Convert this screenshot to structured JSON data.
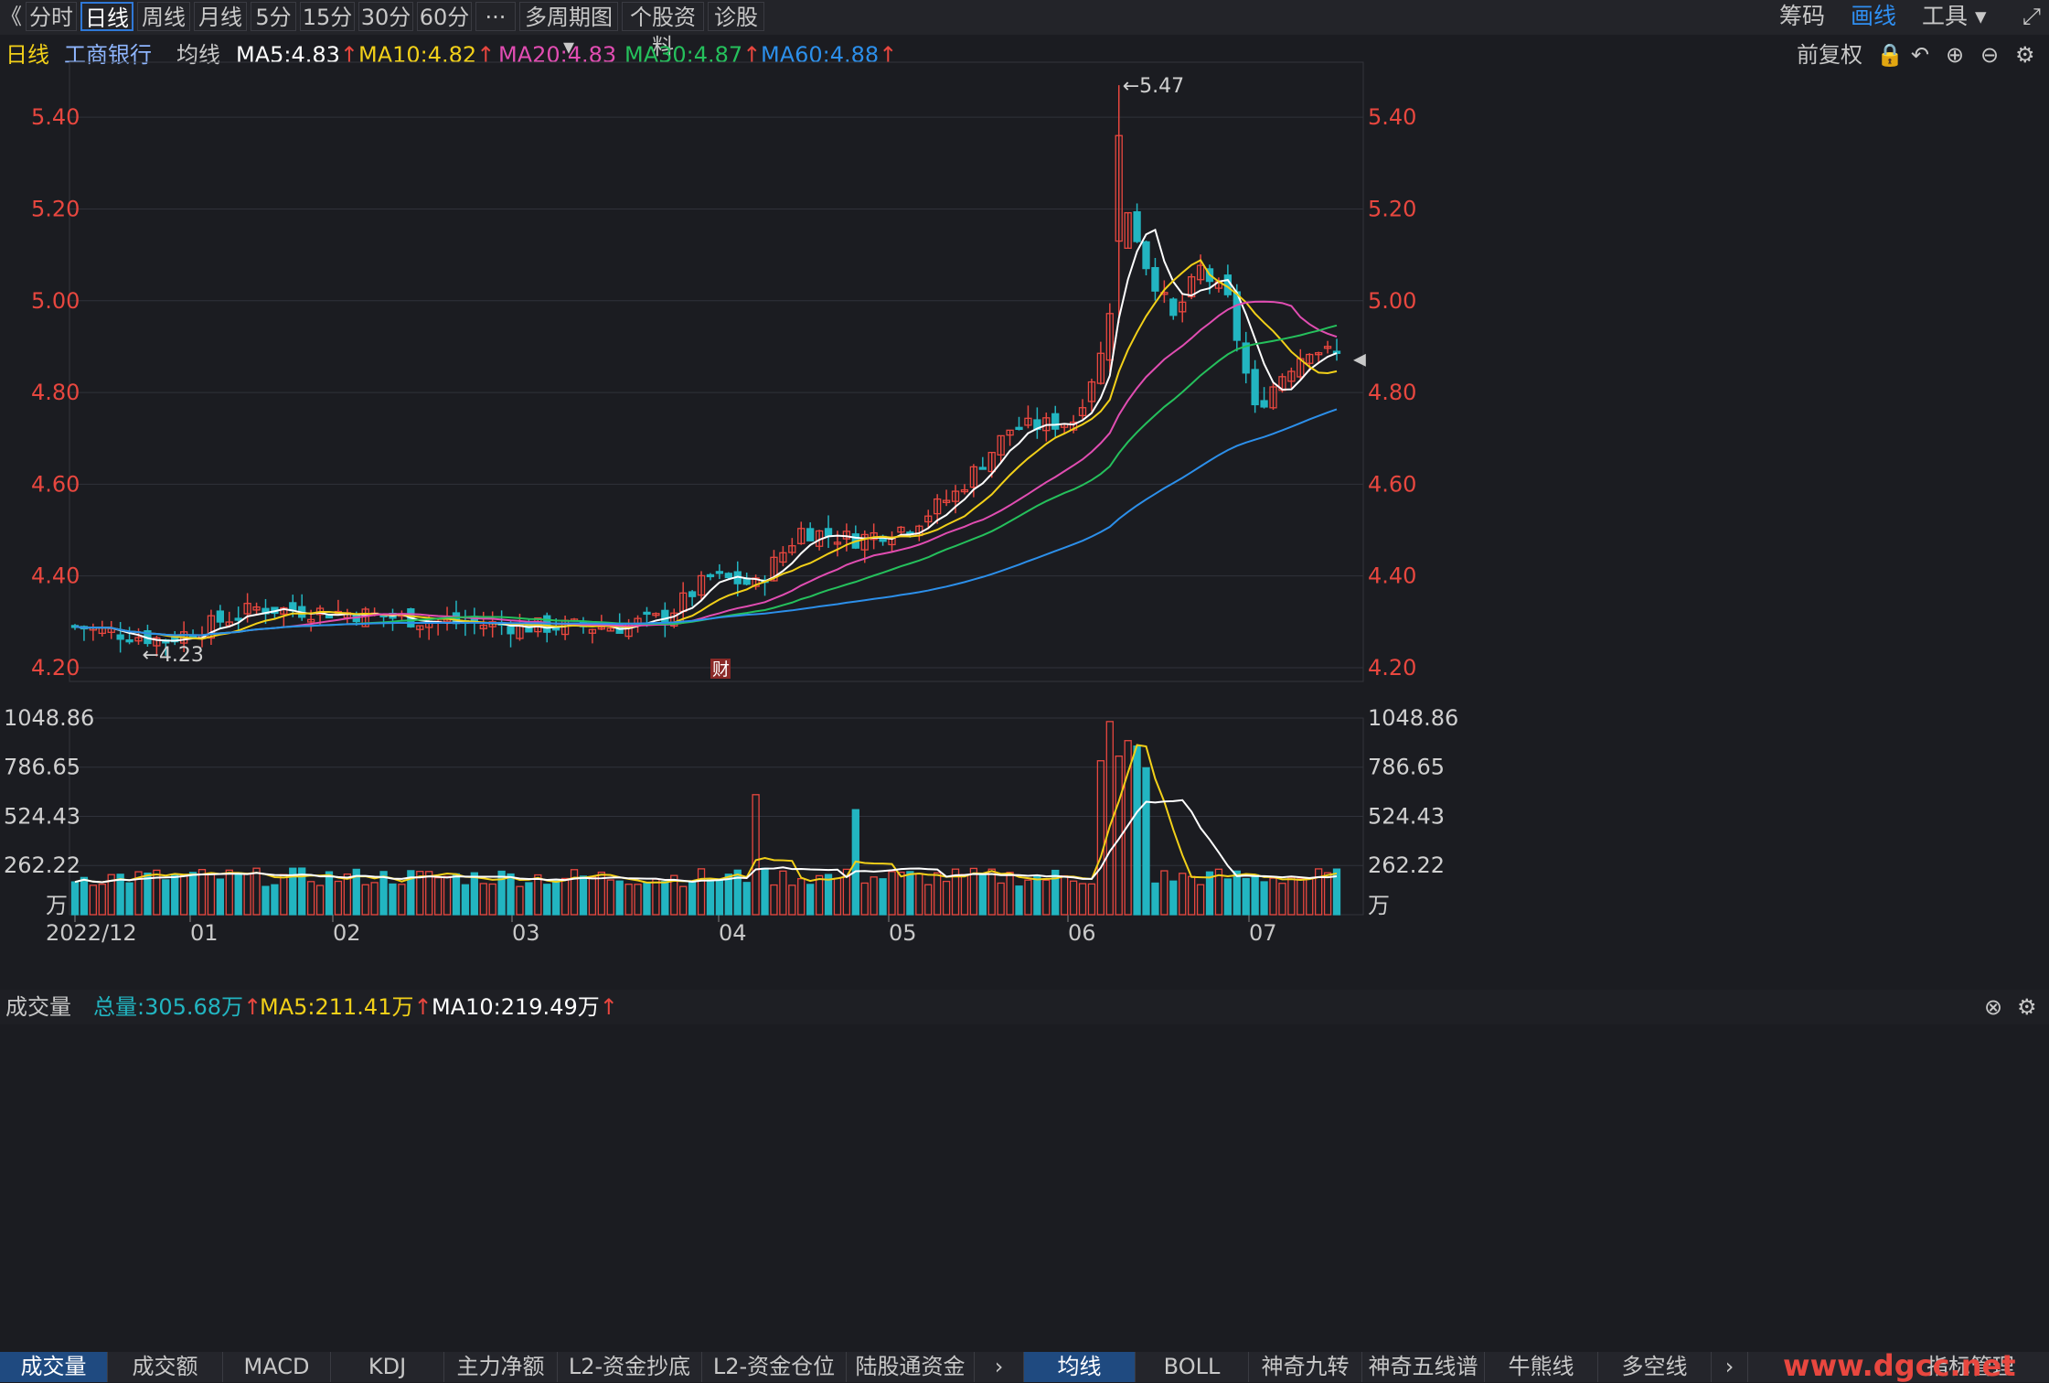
{
  "toolbar": {
    "back": "《",
    "tabs": [
      "分时",
      "日线",
      "周线",
      "月线",
      "5分",
      "15分",
      "30分",
      "60分",
      "···",
      "多周期图 ▾",
      "个股资料",
      "诊股"
    ],
    "active_index": 1,
    "right": [
      "筹码",
      "画线",
      "工具 ▾"
    ],
    "expand_icon": "⤢"
  },
  "info": {
    "period": "日线",
    "stock": "工商银行",
    "avg_label": "均线",
    "ma5": "MA5:4.83",
    "ma10": "MA10:4.82",
    "ma20": "MA20:4.83",
    "ma30": "MA30:4.87",
    "ma60": "MA60:4.88",
    "adjust": "前复权"
  },
  "volume_bar": {
    "label": "成交量",
    "total": "总量:305.68万",
    "ma5": "MA5:211.41万",
    "ma10": "MA10:219.49万"
  },
  "bottom_tabs": {
    "left": [
      "成交量",
      "成交额",
      "MACD",
      "KDJ",
      "主力净额",
      "L2-资金抄底",
      "L2-资金仓位",
      "陆股通资金"
    ],
    "right": [
      "均线",
      "BOLL",
      "神奇九转",
      "神奇五线谱",
      "牛熊线",
      "多空线"
    ],
    "more": "指标管理",
    "watermark": "www.dgcc.net"
  },
  "colors": {
    "up": "#e8473f",
    "down": "#22b5c1",
    "ma5": "#ffffff",
    "ma10": "#f2d019",
    "ma20": "#e14db2",
    "ma30": "#25c05c",
    "ma60": "#2c8fea"
  },
  "chart_data": [
    {
      "type": "candlestick",
      "title": "工商银行 日线",
      "y_ticks": [
        "5.40",
        "5.20",
        "5.00",
        "4.80",
        "4.60",
        "4.40",
        "4.20"
      ],
      "ylim": [
        4.17,
        5.52
      ],
      "x_labels": [
        "2022/12",
        "01",
        "02",
        "03",
        "04",
        "05",
        "06",
        "07"
      ],
      "high_label": "←5.47",
      "low_label": "←4.23",
      "event_label": "财",
      "series_ma": [
        "MA5",
        "MA10",
        "MA20",
        "MA30",
        "MA60"
      ]
    },
    {
      "type": "bar",
      "title": "成交量",
      "y_ticks": [
        "1048.86",
        "786.65",
        "524.43",
        "262.22"
      ],
      "unit": "万",
      "ylim": [
        0,
        1048.86
      ]
    }
  ]
}
